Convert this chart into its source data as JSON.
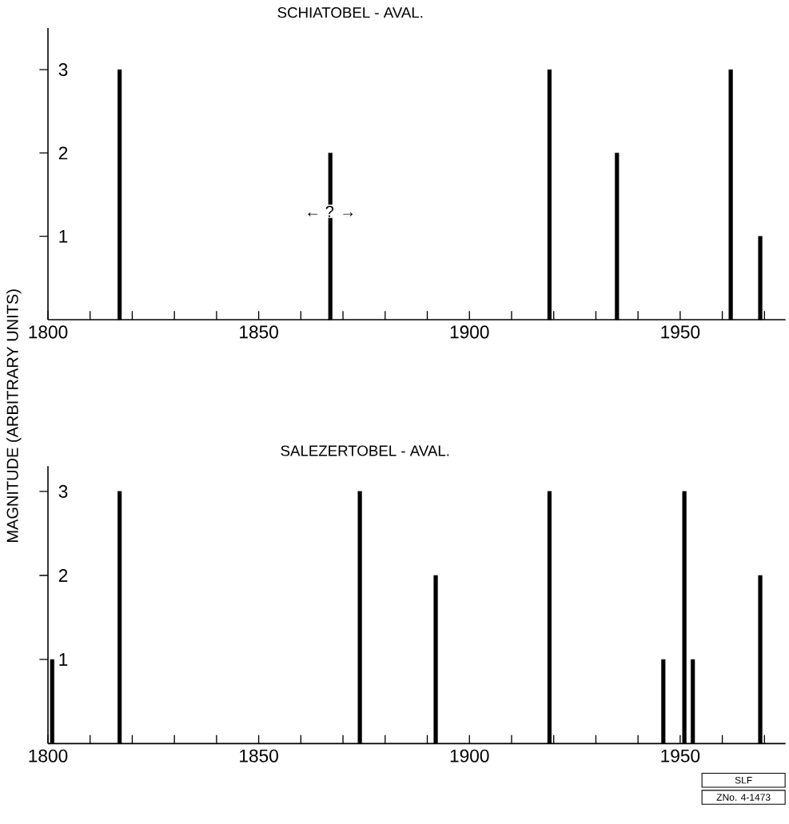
{
  "chart_data": [
    {
      "type": "bar",
      "title": "SCHIATOBEL - AVAL.",
      "ylabel": "MAGNITUDE (ARBITRARY UNITS)",
      "x": [
        1817,
        1867,
        1919,
        1935,
        1962,
        1969
      ],
      "values": [
        3,
        2,
        3,
        2,
        3,
        1
      ],
      "color": "#000000",
      "xlim": [
        1800,
        1975
      ],
      "ylim": [
        0,
        3.5
      ],
      "xticks": [
        1800,
        {
          "value": 1810,
          "label": null
        },
        {
          "value": 1820,
          "label": null
        },
        {
          "value": 1830,
          "label": null
        },
        {
          "value": 1840,
          "label": null
        },
        1850,
        {
          "value": 1860,
          "label": null
        },
        {
          "value": 1870,
          "label": null
        },
        {
          "value": 1880,
          "label": null
        },
        {
          "value": 1890,
          "label": null
        },
        1900,
        {
          "value": 1910,
          "label": null
        },
        {
          "value": 1920,
          "label": null
        },
        {
          "value": 1930,
          "label": null
        },
        {
          "value": 1940,
          "label": null
        },
        1950,
        {
          "value": 1960,
          "label": null
        },
        {
          "value": 1970,
          "label": null
        }
      ],
      "yticks": [
        1,
        2,
        3
      ],
      "annotations": [
        {
          "text": "← ? →",
          "x": 1867,
          "y": 1.3
        }
      ]
    },
    {
      "type": "bar",
      "title": "SALEZERTOBEL - AVAL.",
      "x": [
        1801,
        1817,
        1874,
        1892,
        1919,
        1946,
        1951,
        1953,
        1969
      ],
      "values": [
        1,
        3,
        3,
        2,
        3,
        1,
        3,
        1,
        2
      ],
      "color": "#000000",
      "xlim": [
        1800,
        1975
      ],
      "ylim": [
        0,
        3.3
      ],
      "xticks": [
        1800,
        {
          "value": 1810,
          "label": null
        },
        {
          "value": 1820,
          "label": null
        },
        {
          "value": 1830,
          "label": null
        },
        {
          "value": 1840,
          "label": null
        },
        1850,
        {
          "value": 1860,
          "label": null
        },
        {
          "value": 1870,
          "label": null
        },
        {
          "value": 1880,
          "label": null
        },
        {
          "value": 1890,
          "label": null
        },
        1900,
        {
          "value": 1910,
          "label": null
        },
        {
          "value": 1920,
          "label": null
        },
        {
          "value": 1930,
          "label": null
        },
        {
          "value": 1940,
          "label": null
        },
        1950,
        {
          "value": 1960,
          "label": null
        },
        {
          "value": 1970,
          "label": null
        }
      ],
      "yticks": [
        1,
        2,
        3
      ],
      "annotations": [
        "SLF",
        "ZNo. 4-1473"
      ]
    }
  ]
}
